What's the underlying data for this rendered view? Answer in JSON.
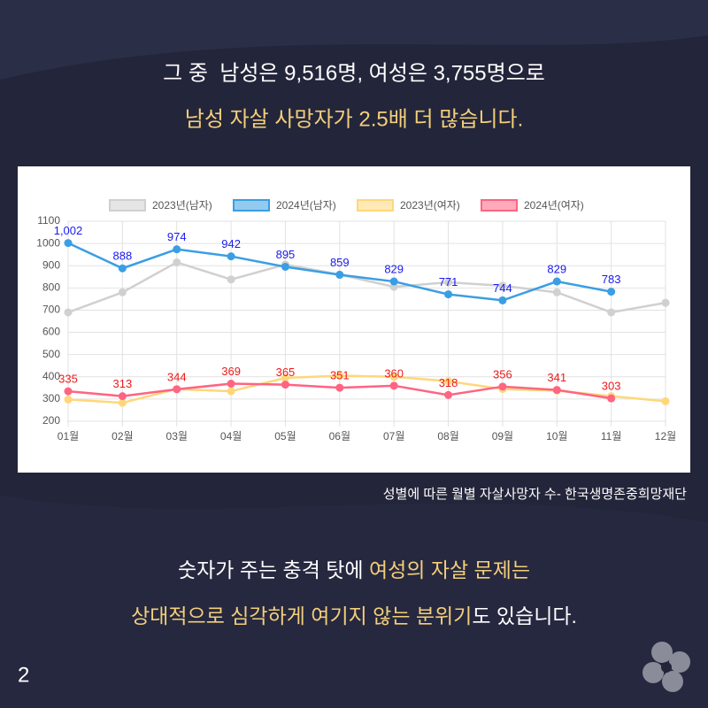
{
  "headline": {
    "line1": "그 중  남성은 9,516명, 여성은 3,755명으로",
    "line2": "남성 자살 사망자가 2.5배 더 많습니다."
  },
  "caption": "성별에 따른 월별 자살사망자 수- 한국생명존중희망재단",
  "body": {
    "line1": [
      "숫자가 주는 충격 탓에 ",
      "여성의 자살 문제는"
    ],
    "line2": [
      "상대적으로 심각하게 여기지 않는 분위기",
      "도 있습니다."
    ]
  },
  "page_number": "2",
  "chart_data": {
    "type": "line",
    "categories": [
      "01월",
      "02월",
      "03월",
      "04월",
      "05월",
      "06월",
      "07월",
      "08월",
      "09월",
      "10월",
      "11월",
      "12월"
    ],
    "ylim": [
      200,
      1100
    ],
    "yticks": [
      200,
      300,
      400,
      500,
      600,
      700,
      800,
      900,
      1000,
      1100
    ],
    "grid": true,
    "legend": "top",
    "series": [
      {
        "name": "2023년(남자)",
        "color": "#d0d0d0",
        "values": [
          690,
          780,
          915,
          838,
          905,
          860,
          805,
          825,
          810,
          780,
          690,
          733
        ]
      },
      {
        "name": "2024년(남자)",
        "color": "#3a9ee4",
        "values": [
          1002,
          888,
          974,
          942,
          895,
          859,
          829,
          771,
          744,
          829,
          783,
          null
        ],
        "value_labels": [
          "1,002",
          "888",
          "974",
          "942",
          "895",
          "859",
          "829",
          "771",
          "744",
          "829",
          "783",
          null
        ],
        "label_color": "#1a1aee"
      },
      {
        "name": "2023년(여자)",
        "color": "#ffd77a",
        "values": [
          298,
          283,
          345,
          335,
          395,
          405,
          400,
          380,
          345,
          338,
          313,
          290
        ]
      },
      {
        "name": "2024년(여자)",
        "color": "#ff6482",
        "values": [
          335,
          313,
          344,
          369,
          365,
          351,
          360,
          318,
          356,
          341,
          303,
          null
        ],
        "data_labels": true,
        "label_color": "#ee1a1a"
      }
    ]
  }
}
